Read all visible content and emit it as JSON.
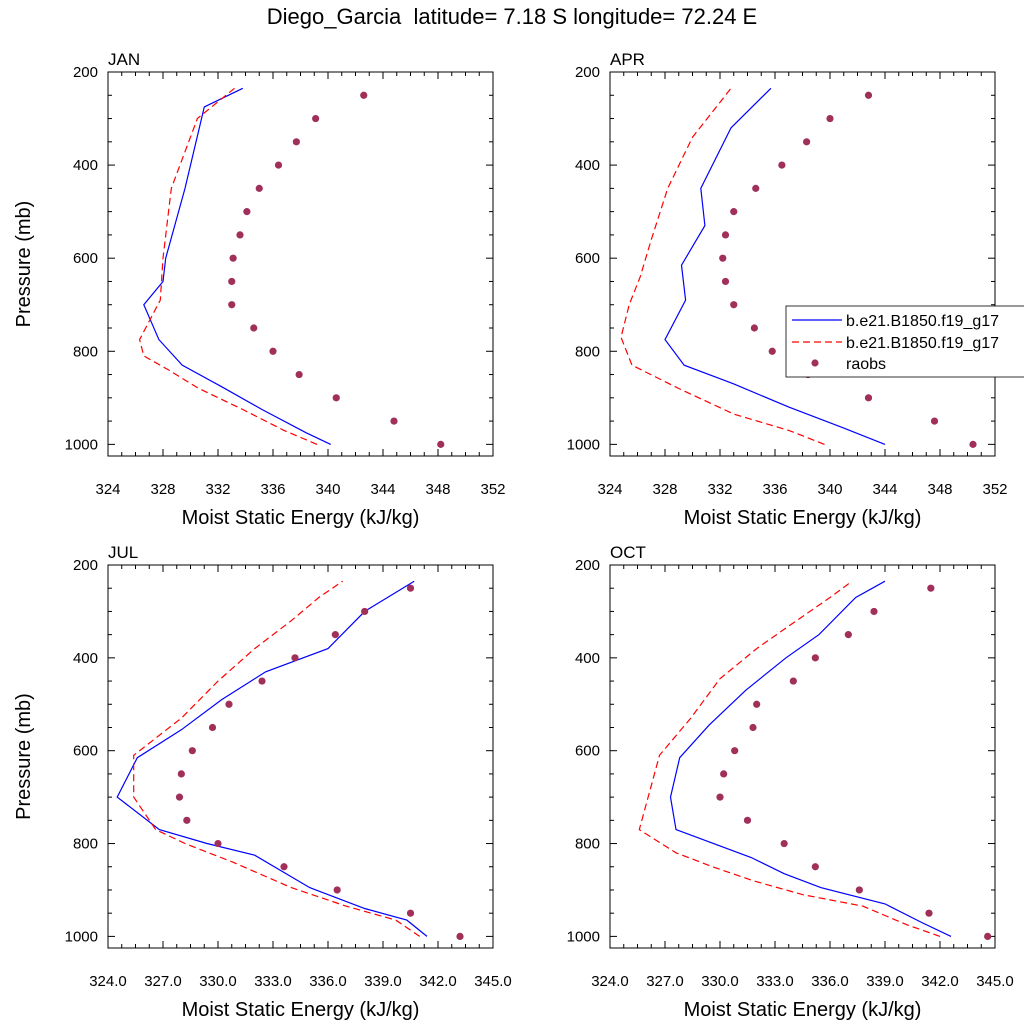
{
  "title": "Diego_Garcia  latitude= 7.18 S longitude= 72.24 E",
  "legend": {
    "entries": [
      "b.e21.B1850.f19_g17",
      "b.e21.B1850.f19_g17",
      "raobs"
    ],
    "colors": [
      "#0000ff",
      "#ff0000",
      "#a0305a"
    ]
  },
  "chart_data": [
    {
      "type": "line",
      "panel": "JAN",
      "xlabel": "Moist Static Energy (kJ/kg)",
      "ylabel": "Pressure (mb)",
      "xlim": [
        324,
        352
      ],
      "ylim": [
        200,
        1025
      ],
      "y_inverted": true,
      "xticks": [
        "324",
        "328",
        "332",
        "336",
        "340",
        "344",
        "348",
        "352"
      ],
      "yticks": [
        "200",
        "400",
        "600",
        "800",
        "1000"
      ],
      "series": [
        {
          "name": "b.e21.B1850.f19_g17",
          "style": "solid",
          "color": "#0000ff",
          "x": [
            340.2,
            338.4,
            335.2,
            332.2,
            329.4,
            327.7,
            326.6,
            328.0,
            328.2,
            329.6,
            331.0,
            333.8
          ],
          "y": [
            1000,
            975,
            925,
            875,
            830,
            775,
            700,
            650,
            600,
            450,
            275,
            235
          ]
        },
        {
          "name": "b.e21.B1850.f19_g17",
          "style": "dashed",
          "color": "#ff0000",
          "x": [
            339.2,
            336.8,
            333.8,
            330.6,
            328.4,
            326.6,
            326.3,
            327.8,
            328.0,
            328.6,
            330.5,
            333.2
          ],
          "y": [
            1000,
            970,
            925,
            880,
            840,
            810,
            775,
            690,
            600,
            450,
            300,
            235
          ]
        },
        {
          "name": "raobs",
          "style": "markers",
          "color": "#a0305a",
          "x": [
            348.2,
            344.8,
            340.6,
            337.9,
            336.0,
            334.6,
            333.0,
            333.0,
            333.1,
            333.6,
            334.1,
            335.0,
            336.4,
            337.7,
            339.1,
            342.6
          ],
          "y": [
            1000,
            950,
            900,
            850,
            800,
            750,
            700,
            650,
            600,
            550,
            500,
            450,
            400,
            350,
            300,
            250
          ]
        }
      ]
    },
    {
      "type": "line",
      "panel": "APR",
      "xlabel": "Moist Static Energy (kJ/kg)",
      "ylabel": "",
      "xlim": [
        324,
        352
      ],
      "ylim": [
        200,
        1025
      ],
      "y_inverted": true,
      "xticks": [
        "324",
        "328",
        "332",
        "336",
        "340",
        "344",
        "348",
        "352"
      ],
      "yticks": [
        "200",
        "400",
        "600",
        "800",
        "1000"
      ],
      "series": [
        {
          "name": "b.e21.B1850.f19_g17",
          "style": "solid",
          "color": "#0000ff",
          "x": [
            344.0,
            341.0,
            337.0,
            333.0,
            329.4,
            328.0,
            329.5,
            329.2,
            330.9,
            330.6,
            332.8,
            335.7
          ],
          "y": [
            1000,
            965,
            920,
            870,
            830,
            775,
            690,
            615,
            530,
            450,
            320,
            235
          ]
        },
        {
          "name": "b.e21.B1850.f19_g17",
          "style": "dashed",
          "color": "#ff0000",
          "x": [
            339.6,
            337.0,
            333.0,
            329.0,
            325.6,
            324.8,
            325.4,
            326.2,
            327.0,
            328.2,
            330.0,
            332.8
          ],
          "y": [
            1000,
            970,
            935,
            880,
            830,
            770,
            700,
            640,
            560,
            450,
            340,
            235
          ]
        },
        {
          "name": "raobs",
          "style": "markers",
          "color": "#a0305a",
          "x": [
            350.4,
            347.6,
            342.8,
            338.4,
            335.8,
            334.5,
            333.0,
            332.4,
            332.2,
            332.4,
            333.0,
            334.6,
            336.5,
            338.3,
            340.0,
            342.8
          ],
          "y": [
            1000,
            950,
            900,
            850,
            800,
            750,
            700,
            650,
            600,
            550,
            500,
            450,
            400,
            350,
            300,
            250
          ]
        }
      ]
    },
    {
      "type": "line",
      "panel": "JUL",
      "xlabel": "Moist Static Energy (kJ/kg)",
      "ylabel": "Pressure (mb)",
      "xlim": [
        324,
        345
      ],
      "ylim": [
        200,
        1025
      ],
      "y_inverted": true,
      "xticks": [
        "324.0",
        "327.0",
        "330.0",
        "333.0",
        "336.0",
        "339.0",
        "342.0",
        "345.0"
      ],
      "yticks": [
        "200",
        "400",
        "600",
        "800",
        "1000"
      ],
      "series": [
        {
          "name": "b.e21.B1850.f19_g17",
          "style": "solid",
          "color": "#0000ff",
          "x": [
            341.4,
            340.3,
            338.0,
            335.0,
            332.0,
            329.4,
            326.8,
            324.5,
            325.6,
            328.0,
            330.2,
            332.6,
            336.0,
            338.0,
            340.7
          ],
          "y": [
            1000,
            965,
            940,
            895,
            825,
            800,
            770,
            700,
            615,
            555,
            490,
            430,
            380,
            300,
            235
          ]
        },
        {
          "name": "b.e21.B1850.f19_g17",
          "style": "dashed",
          "color": "#ff0000",
          "x": [
            341.0,
            339.7,
            337.0,
            334.0,
            330.8,
            328.2,
            326.6,
            325.4,
            325.4,
            328.0,
            330.0,
            332.0,
            334.0,
            335.5,
            336.8
          ],
          "y": [
            1000,
            965,
            935,
            895,
            840,
            800,
            770,
            700,
            610,
            530,
            450,
            380,
            320,
            270,
            235
          ]
        },
        {
          "name": "raobs",
          "style": "markers",
          "color": "#a0305a",
          "x": [
            343.2,
            340.5,
            336.5,
            333.6,
            330.0,
            328.3,
            327.9,
            328.0,
            328.6,
            329.7,
            330.6,
            332.4,
            334.2,
            336.4,
            338.0,
            340.5
          ],
          "y": [
            1000,
            950,
            900,
            850,
            800,
            750,
            700,
            650,
            600,
            550,
            500,
            450,
            400,
            350,
            300,
            250
          ]
        }
      ]
    },
    {
      "type": "line",
      "panel": "OCT",
      "xlabel": "Moist Static Energy (kJ/kg)",
      "ylabel": "",
      "xlim": [
        324,
        345
      ],
      "ylim": [
        200,
        1025
      ],
      "y_inverted": true,
      "xticks": [
        "324.0",
        "327.0",
        "330.0",
        "333.0",
        "336.0",
        "339.0",
        "342.0",
        "345.0"
      ],
      "yticks": [
        "200",
        "400",
        "600",
        "800",
        "1000"
      ],
      "series": [
        {
          "name": "b.e21.B1850.f19_g17",
          "style": "solid",
          "color": "#0000ff",
          "x": [
            342.6,
            341.0,
            339.0,
            335.5,
            333.5,
            331.7,
            327.6,
            327.3,
            327.8,
            329.4,
            331.4,
            333.6,
            335.4,
            337.4,
            339.0
          ],
          "y": [
            1000,
            970,
            930,
            895,
            865,
            830,
            770,
            700,
            615,
            545,
            470,
            400,
            350,
            270,
            235
          ]
        },
        {
          "name": "b.e21.B1850.f19_g17",
          "style": "dashed",
          "color": "#ff0000",
          "x": [
            342.0,
            340.2,
            337.8,
            334.5,
            331.8,
            329.6,
            327.6,
            325.6,
            326.7,
            328.4,
            330.0,
            332.0,
            333.8,
            336.0,
            337.2
          ],
          "y": [
            1000,
            975,
            935,
            910,
            880,
            850,
            820,
            770,
            610,
            530,
            445,
            380,
            330,
            270,
            235
          ]
        },
        {
          "name": "raobs",
          "style": "markers",
          "color": "#a0305a",
          "x": [
            344.6,
            341.4,
            337.6,
            335.2,
            333.5,
            331.5,
            330.0,
            330.2,
            330.8,
            331.8,
            332.0,
            334.0,
            335.2,
            337.0,
            338.4,
            341.5
          ],
          "y": [
            1000,
            950,
            900,
            850,
            800,
            750,
            700,
            650,
            600,
            550,
            500,
            450,
            400,
            350,
            300,
            250
          ]
        }
      ]
    }
  ]
}
